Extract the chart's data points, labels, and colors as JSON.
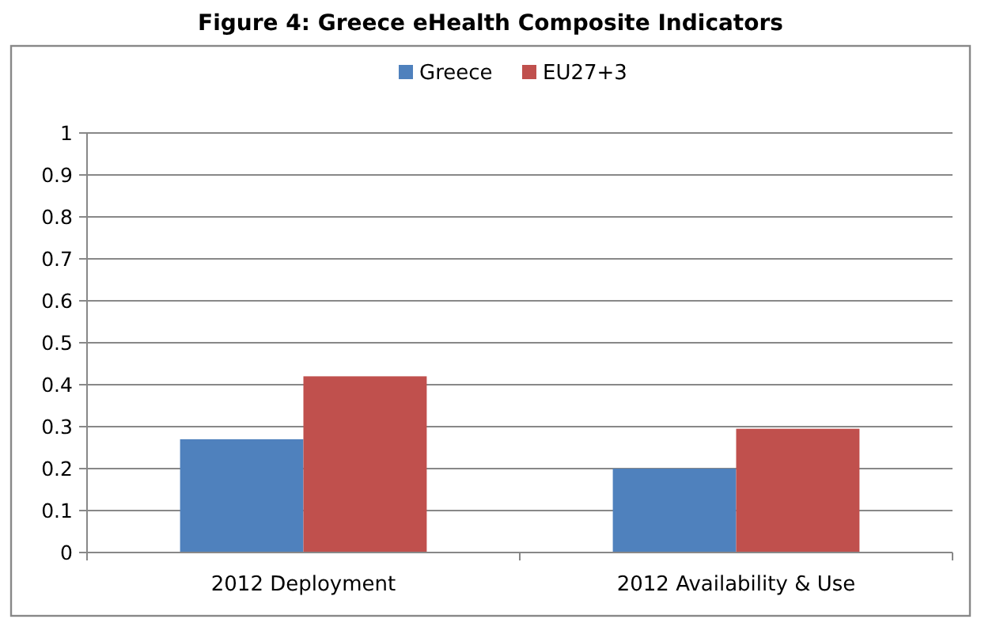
{
  "chart_data": {
    "type": "bar",
    "title": "Figure 4: Greece eHealth Composite Indicators",
    "categories": [
      "2012 Deployment",
      "2012 Availability & Use"
    ],
    "series": [
      {
        "name": "Greece",
        "color": "#4f81bd",
        "values": [
          0.27,
          0.2
        ]
      },
      {
        "name": "EU27+3",
        "color": "#c0504d",
        "values": [
          0.42,
          0.295
        ]
      }
    ],
    "ylim": [
      0,
      1
    ],
    "yticks": [
      0,
      0.1,
      0.2,
      0.3,
      0.4,
      0.5,
      0.6,
      0.7,
      0.8,
      0.9,
      1
    ],
    "grid": "y",
    "legend": "top"
  }
}
